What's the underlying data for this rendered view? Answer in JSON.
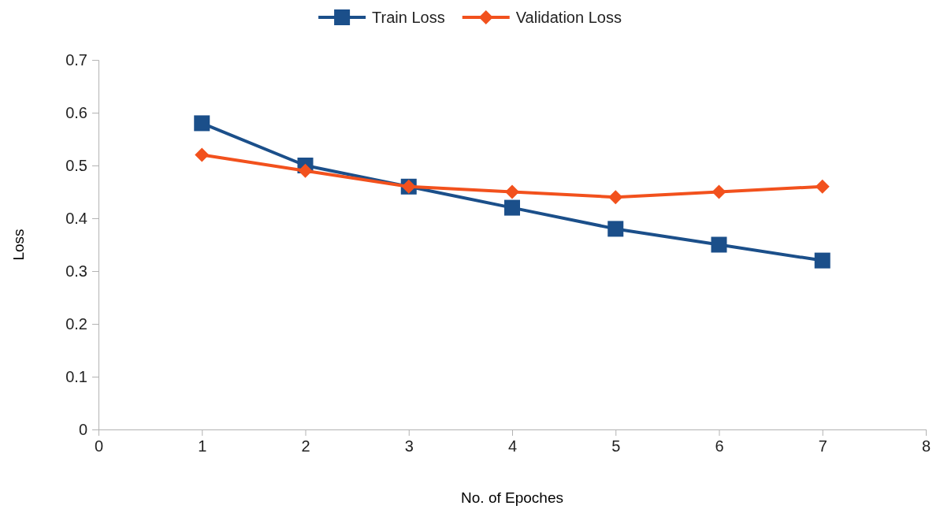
{
  "chart_data": {
    "type": "line",
    "xlabel": "No. of Epoches",
    "ylabel": "Loss",
    "x": [
      1,
      2,
      3,
      4,
      5,
      6,
      7
    ],
    "series": [
      {
        "name": "Train Loss",
        "color": "#1b4f8a",
        "marker": "square",
        "values": [
          0.58,
          0.5,
          0.46,
          0.42,
          0.38,
          0.35,
          0.32
        ]
      },
      {
        "name": "Validation Loss",
        "color": "#f2511d",
        "marker": "diamond",
        "values": [
          0.52,
          0.49,
          0.46,
          0.45,
          0.44,
          0.45,
          0.46
        ]
      }
    ],
    "xlim": [
      0,
      8
    ],
    "xticks": [
      0,
      1,
      2,
      3,
      4,
      5,
      6,
      7,
      8
    ],
    "ylim": [
      0,
      0.7
    ],
    "yticks": [
      0,
      {
        "value": 0.1,
        "label": "0.1"
      },
      {
        "value": 0.2,
        "label": "0.2"
      },
      {
        "value": 0.3,
        "label": "0.3"
      },
      {
        "value": 0.4,
        "label": "0.4"
      },
      {
        "value": 0.5,
        "label": "0.5"
      },
      {
        "value": 0.6,
        "label": "0.6"
      },
      {
        "value": 0.7,
        "label": "0.7"
      }
    ],
    "grid": false,
    "legend": "top",
    "line_style": "solid"
  }
}
